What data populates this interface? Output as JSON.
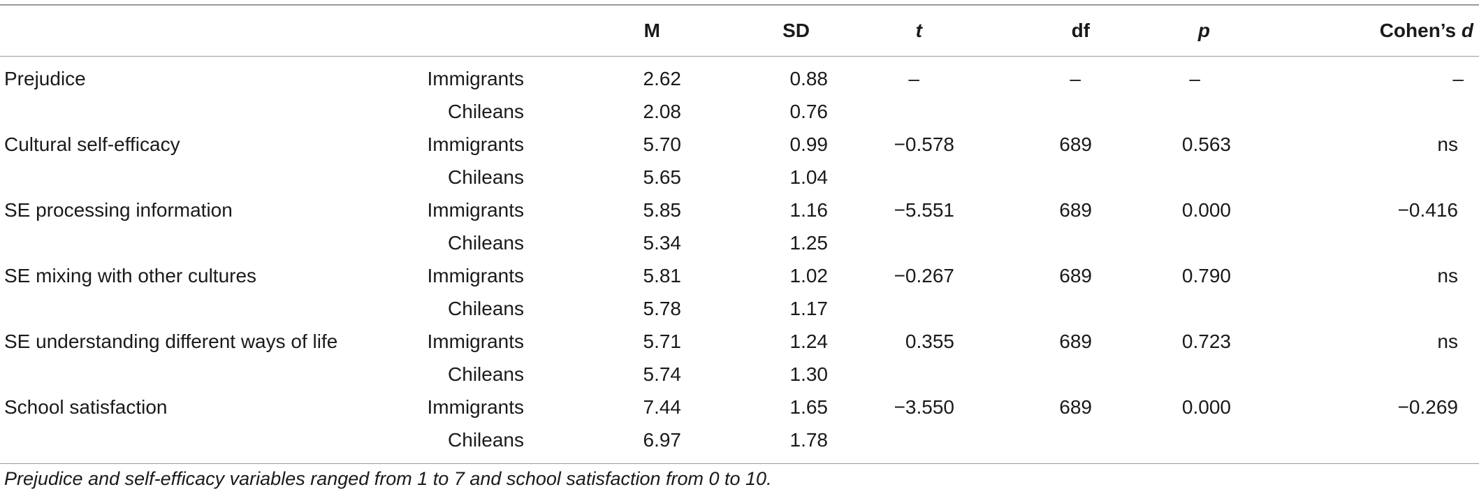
{
  "table": {
    "headers": {
      "variable": "",
      "group": "",
      "m": "M",
      "sd": "SD",
      "t": "t",
      "df": "df",
      "p": "p",
      "cohens_d_prefix": "Cohen’s ",
      "cohens_d_symbol": "d"
    },
    "rows": [
      {
        "variable": "Prejudice",
        "group": "Immigrants",
        "m": "2.62",
        "sd": "0.88",
        "t": "–",
        "df": "–",
        "p": "–",
        "d": "–"
      },
      {
        "variable": "",
        "group": "Chileans",
        "m": "2.08",
        "sd": "0.76",
        "t": "",
        "df": "",
        "p": "",
        "d": ""
      },
      {
        "variable": "Cultural self-efficacy",
        "group": "Immigrants",
        "m": "5.70",
        "sd": "0.99",
        "t": "−0.578",
        "df": "689",
        "p": "0.563",
        "d": "ns"
      },
      {
        "variable": "",
        "group": "Chileans",
        "m": "5.65",
        "sd": "1.04",
        "t": "",
        "df": "",
        "p": "",
        "d": ""
      },
      {
        "variable": "SE processing information",
        "group": "Immigrants",
        "m": "5.85",
        "sd": "1.16",
        "t": "−5.551",
        "df": "689",
        "p": "0.000",
        "d": "−0.416"
      },
      {
        "variable": "",
        "group": "Chileans",
        "m": "5.34",
        "sd": "1.25",
        "t": "",
        "df": "",
        "p": "",
        "d": ""
      },
      {
        "variable": "SE mixing with other cultures",
        "group": "Immigrants",
        "m": "5.81",
        "sd": "1.02",
        "t": "−0.267",
        "df": "689",
        "p": "0.790",
        "d": "ns"
      },
      {
        "variable": "",
        "group": "Chileans",
        "m": "5.78",
        "sd": "1.17",
        "t": "",
        "df": "",
        "p": "",
        "d": ""
      },
      {
        "variable": "SE understanding different ways of life",
        "group": "Immigrants",
        "m": "5.71",
        "sd": "1.24",
        "t": "0.355",
        "df": "689",
        "p": "0.723",
        "d": "ns"
      },
      {
        "variable": "",
        "group": "Chileans",
        "m": "5.74",
        "sd": "1.30",
        "t": "",
        "df": "",
        "p": "",
        "d": ""
      },
      {
        "variable": "School satisfaction",
        "group": "Immigrants",
        "m": "7.44",
        "sd": "1.65",
        "t": "−3.550",
        "df": "689",
        "p": "0.000",
        "d": "−0.269"
      },
      {
        "variable": "",
        "group": "Chileans",
        "m": "6.97",
        "sd": "1.78",
        "t": "",
        "df": "",
        "p": "",
        "d": ""
      }
    ],
    "footnote": "Prejudice and self-efficacy variables ranged from 1 to 7 and school satisfaction from 0 to 10."
  }
}
